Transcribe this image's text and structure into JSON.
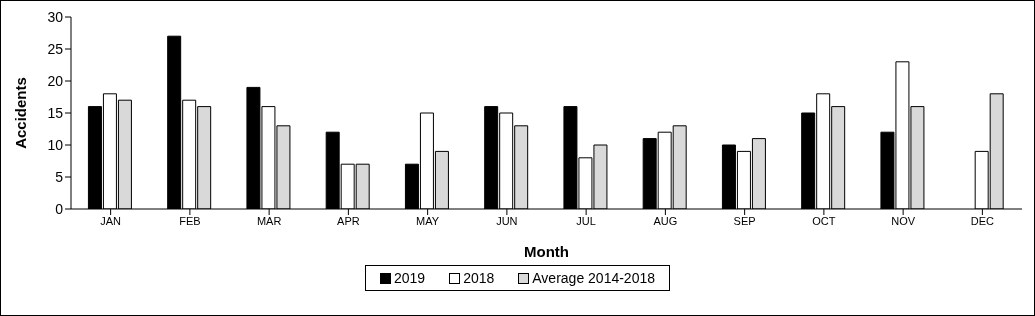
{
  "chart_data": {
    "type": "bar",
    "xlabel": "Month",
    "ylabel": "Accidents",
    "categories": [
      "JAN",
      "FEB",
      "MAR",
      "APR",
      "MAY",
      "JUN",
      "JUL",
      "AUG",
      "SEP",
      "OCT",
      "NOV",
      "DEC"
    ],
    "series": [
      {
        "name": "2019",
        "color": "#000000",
        "values": [
          16,
          27,
          19,
          12,
          7,
          16,
          16,
          11,
          10,
          15,
          12,
          null
        ]
      },
      {
        "name": "2018",
        "color": "#ffffff",
        "values": [
          18,
          17,
          16,
          7,
          15,
          15,
          8,
          12,
          9,
          18,
          23,
          9
        ]
      },
      {
        "name": "Average 2014-2018",
        "color": "#d9d9d9",
        "values": [
          17,
          16,
          13,
          7,
          9,
          13,
          10,
          13,
          11,
          16,
          16,
          18
        ]
      }
    ],
    "ylim": [
      0,
      30
    ],
    "yticks": [
      0,
      5,
      10,
      15,
      20,
      25,
      30
    ],
    "legend": "bottom"
  }
}
